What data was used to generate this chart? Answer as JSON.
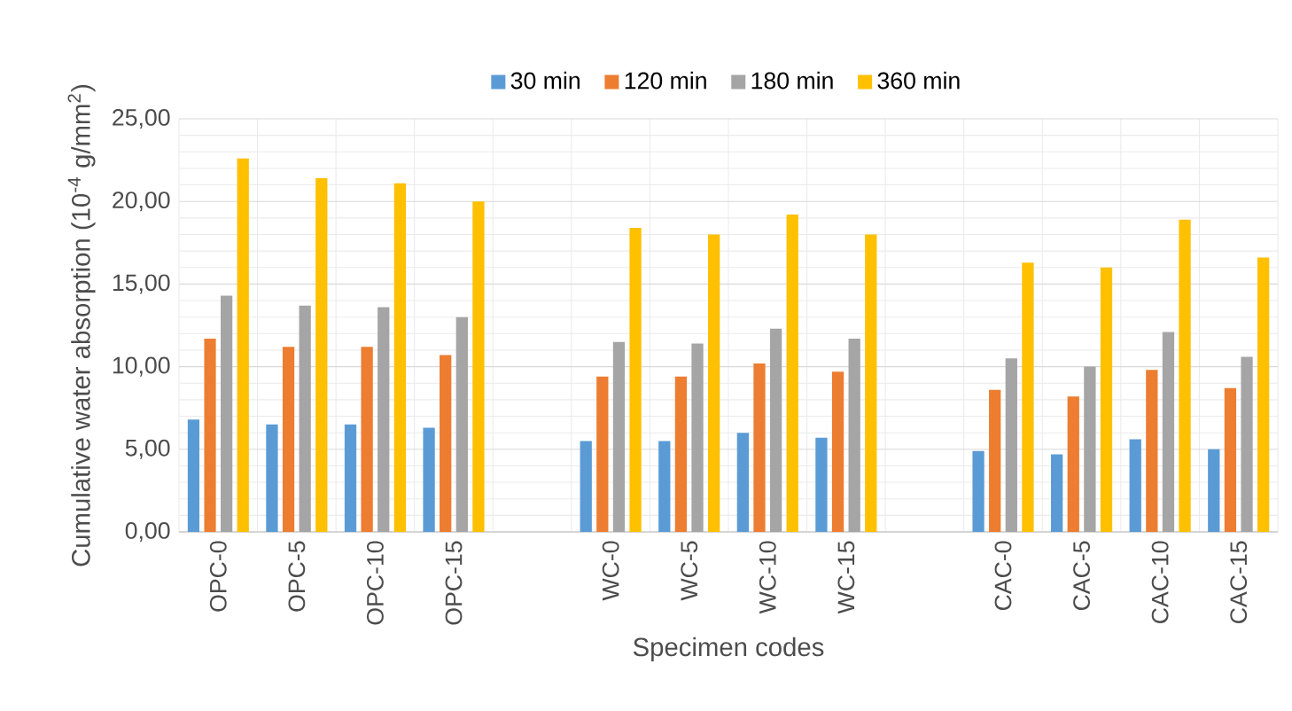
{
  "chart_data": {
    "type": "bar",
    "xlabel": "Specimen codes",
    "ylabel": "Cumulative water absorption (10$^{-4}$ g/mm$^{2}$)",
    "categories": [
      "OPC-0",
      "OPC-5",
      "OPC-10",
      "OPC-15",
      null,
      "WC-0",
      "WC-5",
      "WC-10",
      "WC-15",
      null,
      "CAC-0",
      "CAC-5",
      "CAC-10",
      "CAC-15"
    ],
    "series": [
      {
        "name": "30 min",
        "color": "#5b9bd5",
        "values": [
          6.8,
          6.5,
          6.5,
          6.3,
          null,
          5.5,
          5.5,
          6.0,
          5.7,
          null,
          4.9,
          4.7,
          5.6,
          5.0
        ]
      },
      {
        "name": "120 min",
        "color": "#ed7d31",
        "values": [
          11.7,
          11.2,
          11.2,
          10.7,
          null,
          9.4,
          9.4,
          10.2,
          9.7,
          null,
          8.6,
          8.2,
          9.8,
          8.7
        ]
      },
      {
        "name": "180 min",
        "color": "#a5a5a5",
        "values": [
          14.3,
          13.7,
          13.6,
          13.0,
          null,
          11.5,
          11.4,
          12.3,
          11.7,
          null,
          10.5,
          10.0,
          12.1,
          10.6
        ]
      },
      {
        "name": "360 min",
        "color": "#ffc000",
        "values": [
          22.6,
          21.4,
          21.1,
          20.0,
          null,
          18.4,
          18.0,
          19.2,
          18.0,
          null,
          16.3,
          16.0,
          18.9,
          16.6
        ]
      }
    ],
    "ylim": [
      0,
      25
    ],
    "yticks": [
      {
        "value": 0,
        "label": "0,00"
      },
      {
        "value": 5,
        "label": "5,00"
      },
      {
        "value": 10,
        "label": "10,00"
      },
      {
        "value": 15,
        "label": "15,00"
      },
      {
        "value": 20,
        "label": "20,00"
      },
      {
        "value": 25,
        "label": "25,00"
      }
    ],
    "grid": true,
    "legend": "top"
  }
}
